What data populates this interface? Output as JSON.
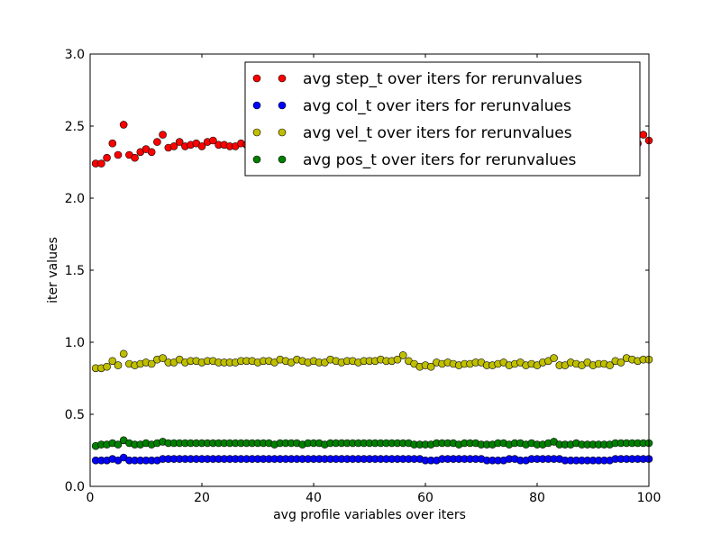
{
  "chart_data": {
    "type": "scatter",
    "xlabel": "avg profile variables over iters",
    "ylabel": "iter values",
    "xlim": [
      0,
      100
    ],
    "ylim": [
      0.0,
      3.0
    ],
    "x_ticks": [
      "0",
      "20",
      "40",
      "60",
      "80",
      "100"
    ],
    "y_ticks": [
      "0.0",
      "0.5",
      "1.0",
      "1.5",
      "2.0",
      "2.5",
      "3.0"
    ],
    "grid": false,
    "legend_position": "top-right",
    "x": [
      1,
      2,
      3,
      4,
      5,
      6,
      7,
      8,
      9,
      10,
      11,
      12,
      13,
      14,
      15,
      16,
      17,
      18,
      19,
      20,
      21,
      22,
      23,
      24,
      25,
      26,
      27,
      28,
      29,
      30,
      31,
      32,
      33,
      34,
      35,
      36,
      37,
      38,
      39,
      40,
      41,
      42,
      43,
      44,
      45,
      46,
      47,
      48,
      49,
      50,
      51,
      52,
      53,
      54,
      55,
      56,
      57,
      58,
      59,
      60,
      61,
      62,
      63,
      64,
      65,
      66,
      67,
      68,
      69,
      70,
      71,
      72,
      73,
      74,
      75,
      76,
      77,
      78,
      79,
      80,
      81,
      82,
      83,
      84,
      85,
      86,
      87,
      88,
      89,
      90,
      91,
      92,
      93,
      94,
      95,
      96,
      97,
      98,
      99,
      100
    ],
    "series": [
      {
        "name": "avg step_t over iters for rerunvalues",
        "color": "#ff0000",
        "values": [
          2.24,
          2.24,
          2.28,
          2.38,
          2.3,
          2.51,
          2.3,
          2.28,
          2.32,
          2.34,
          2.32,
          2.39,
          2.44,
          2.35,
          2.36,
          2.39,
          2.36,
          2.37,
          2.38,
          2.36,
          2.39,
          2.4,
          2.37,
          2.37,
          2.36,
          2.36,
          2.38,
          2.37,
          2.36,
          2.37,
          2.38,
          2.37,
          2.36,
          2.37,
          2.38,
          2.37,
          2.36,
          2.37,
          2.38,
          2.37,
          2.36,
          2.37,
          2.38,
          2.37,
          2.36,
          2.37,
          2.38,
          2.37,
          2.36,
          2.37,
          2.38,
          2.37,
          2.36,
          2.37,
          2.38,
          2.37,
          2.36,
          2.37,
          2.38,
          2.37,
          2.36,
          2.37,
          2.38,
          2.37,
          2.36,
          2.37,
          2.38,
          2.37,
          2.36,
          2.37,
          2.38,
          2.37,
          2.36,
          2.37,
          2.38,
          2.37,
          2.36,
          2.37,
          2.38,
          2.37,
          2.36,
          2.37,
          2.38,
          2.37,
          2.36,
          2.37,
          2.38,
          2.37,
          2.36,
          2.37,
          2.38,
          2.37,
          2.36,
          2.37,
          2.38,
          2.37,
          2.36,
          2.38,
          2.44,
          2.4
        ]
      },
      {
        "name": "avg col_t over iters for rerunvalues",
        "color": "#0000ff",
        "values": [
          0.18,
          0.18,
          0.18,
          0.19,
          0.18,
          0.2,
          0.18,
          0.18,
          0.18,
          0.18,
          0.18,
          0.18,
          0.19,
          0.19,
          0.19,
          0.19,
          0.19,
          0.19,
          0.19,
          0.19,
          0.19,
          0.19,
          0.19,
          0.19,
          0.19,
          0.19,
          0.19,
          0.19,
          0.19,
          0.19,
          0.19,
          0.19,
          0.19,
          0.19,
          0.19,
          0.19,
          0.19,
          0.19,
          0.19,
          0.19,
          0.19,
          0.19,
          0.19,
          0.19,
          0.19,
          0.19,
          0.19,
          0.19,
          0.19,
          0.19,
          0.19,
          0.19,
          0.19,
          0.19,
          0.19,
          0.19,
          0.19,
          0.19,
          0.19,
          0.18,
          0.18,
          0.18,
          0.19,
          0.19,
          0.19,
          0.19,
          0.19,
          0.19,
          0.19,
          0.19,
          0.18,
          0.18,
          0.18,
          0.18,
          0.19,
          0.19,
          0.18,
          0.18,
          0.19,
          0.19,
          0.19,
          0.19,
          0.19,
          0.19,
          0.18,
          0.18,
          0.18,
          0.18,
          0.18,
          0.18,
          0.18,
          0.18,
          0.18,
          0.19,
          0.19,
          0.19,
          0.19,
          0.19,
          0.19,
          0.19
        ]
      },
      {
        "name": "avg vel_t over iters for rerunvalues",
        "color": "#bfbf00",
        "values": [
          0.82,
          0.82,
          0.83,
          0.87,
          0.84,
          0.92,
          0.85,
          0.84,
          0.85,
          0.86,
          0.85,
          0.88,
          0.89,
          0.86,
          0.86,
          0.88,
          0.86,
          0.87,
          0.87,
          0.86,
          0.87,
          0.87,
          0.86,
          0.86,
          0.86,
          0.86,
          0.87,
          0.87,
          0.87,
          0.86,
          0.87,
          0.87,
          0.86,
          0.88,
          0.87,
          0.86,
          0.88,
          0.87,
          0.86,
          0.87,
          0.86,
          0.86,
          0.88,
          0.87,
          0.86,
          0.87,
          0.87,
          0.86,
          0.87,
          0.87,
          0.87,
          0.88,
          0.87,
          0.87,
          0.88,
          0.91,
          0.87,
          0.85,
          0.83,
          0.84,
          0.83,
          0.86,
          0.85,
          0.86,
          0.85,
          0.84,
          0.85,
          0.85,
          0.86,
          0.86,
          0.84,
          0.84,
          0.85,
          0.86,
          0.84,
          0.85,
          0.86,
          0.84,
          0.85,
          0.84,
          0.86,
          0.87,
          0.89,
          0.84,
          0.84,
          0.86,
          0.85,
          0.84,
          0.86,
          0.84,
          0.85,
          0.85,
          0.84,
          0.87,
          0.86,
          0.89,
          0.88,
          0.87,
          0.88,
          0.88
        ]
      },
      {
        "name": "avg pos_t over iters for rerunvalues",
        "color": "#008000",
        "values": [
          0.28,
          0.29,
          0.29,
          0.3,
          0.29,
          0.32,
          0.3,
          0.29,
          0.29,
          0.3,
          0.29,
          0.3,
          0.31,
          0.3,
          0.3,
          0.3,
          0.3,
          0.3,
          0.3,
          0.3,
          0.3,
          0.3,
          0.3,
          0.3,
          0.3,
          0.3,
          0.3,
          0.3,
          0.3,
          0.3,
          0.3,
          0.3,
          0.29,
          0.3,
          0.3,
          0.3,
          0.3,
          0.29,
          0.3,
          0.3,
          0.3,
          0.29,
          0.3,
          0.3,
          0.3,
          0.3,
          0.3,
          0.3,
          0.3,
          0.3,
          0.3,
          0.3,
          0.3,
          0.3,
          0.3,
          0.3,
          0.3,
          0.29,
          0.29,
          0.29,
          0.29,
          0.3,
          0.3,
          0.3,
          0.3,
          0.29,
          0.3,
          0.3,
          0.3,
          0.29,
          0.29,
          0.29,
          0.3,
          0.3,
          0.29,
          0.3,
          0.3,
          0.29,
          0.3,
          0.29,
          0.29,
          0.3,
          0.31,
          0.29,
          0.29,
          0.29,
          0.3,
          0.29,
          0.29,
          0.29,
          0.29,
          0.29,
          0.29,
          0.3,
          0.3,
          0.3,
          0.3,
          0.3,
          0.3,
          0.3
        ]
      }
    ]
  }
}
